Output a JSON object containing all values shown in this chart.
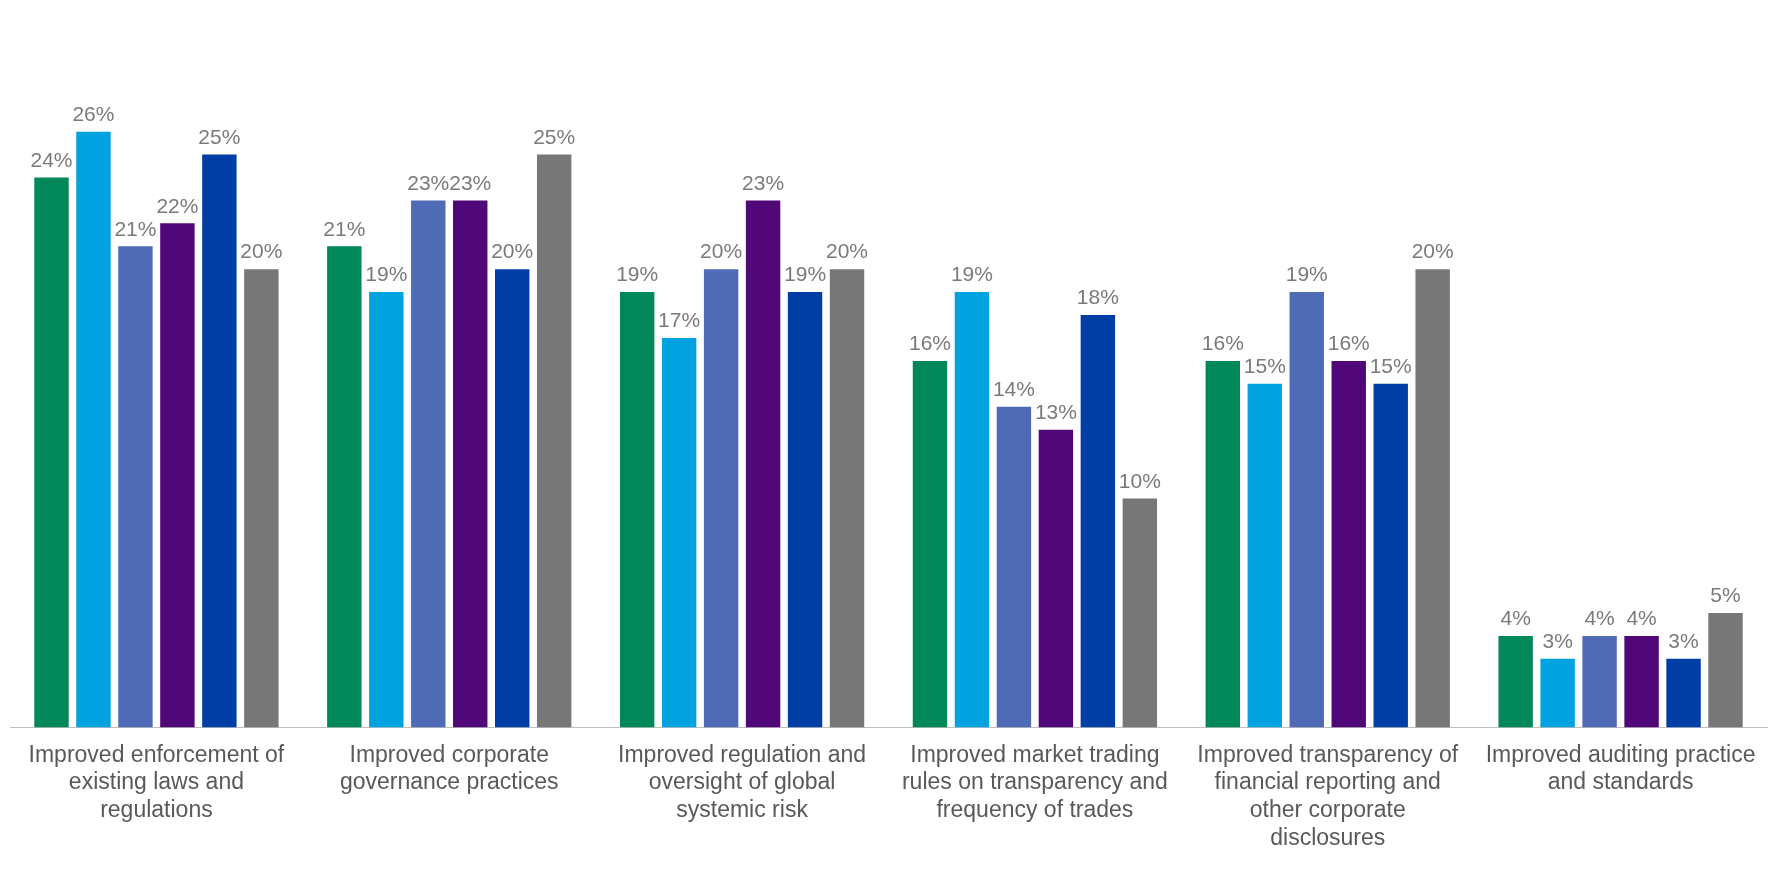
{
  "chart_data": {
    "type": "bar",
    "categories": [
      "Improved enforcement of existing laws and regulations",
      "Improved corporate governance practices",
      "Improved regulation and oversight of global systemic risk",
      "Improved market trading rules on transparency and frequency of trades",
      "Improved transparency of financial reporting and other corporate disclosures",
      "Improved auditing practice and standards"
    ],
    "series": [
      {
        "color": "#00875a",
        "values": [
          24,
          21,
          19,
          16,
          16,
          4
        ],
        "value_labels": [
          "24%",
          "21%",
          "19%",
          "16%",
          "16%",
          "4%"
        ]
      },
      {
        "color": "#00a3e0",
        "values": [
          26,
          19,
          17,
          19,
          15,
          3
        ],
        "value_labels": [
          "26%",
          "19%",
          "17%",
          "19%",
          "15%",
          "3%"
        ]
      },
      {
        "color": "#4f6bb5",
        "values": [
          21,
          23,
          20,
          14,
          19,
          4
        ],
        "value_labels": [
          "21%",
          "23%",
          "20%",
          "14%",
          "19%",
          "4%"
        ]
      },
      {
        "color": "#500778",
        "values": [
          22,
          23,
          23,
          13,
          16,
          4
        ],
        "value_labels": [
          "22%",
          "23%",
          "23%",
          "13%",
          "16%",
          "4%"
        ]
      },
      {
        "color": "#003da5",
        "values": [
          25,
          20,
          19,
          18,
          15,
          3
        ],
        "value_labels": [
          "25%",
          "20%",
          "19%",
          "18%",
          "15%",
          "3%"
        ]
      },
      {
        "color": "#777777",
        "values": [
          20,
          25,
          20,
          10,
          20,
          5
        ],
        "value_labels": [
          "20%",
          "25%",
          "20%",
          "10%",
          "20%",
          "5%"
        ]
      }
    ],
    "grid": false,
    "legend": false
  }
}
